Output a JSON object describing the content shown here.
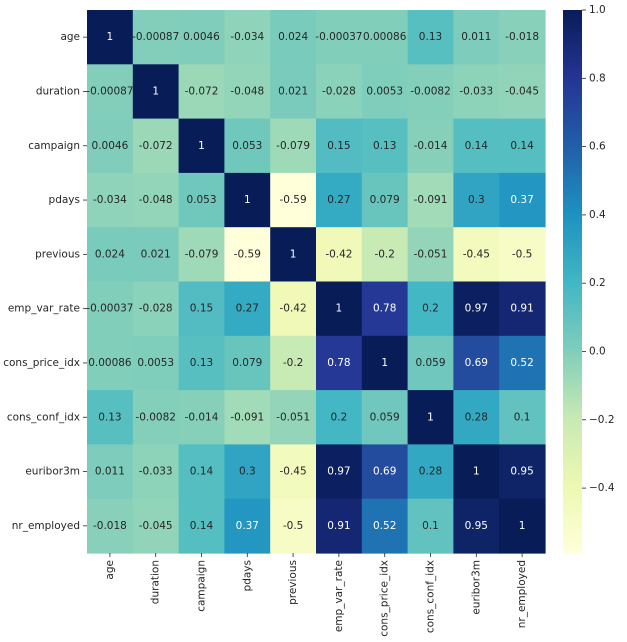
{
  "chart_data": {
    "type": "heatmap",
    "title": "",
    "xlabel": "",
    "ylabel": "",
    "variables": [
      "age",
      "duration",
      "campaign",
      "pdays",
      "previous",
      "emp_var_rate",
      "cons_price_idx",
      "cons_conf_idx",
      "euribor3m",
      "nr_employed"
    ],
    "matrix": [
      [
        1,
        -0.00087,
        0.0046,
        -0.034,
        0.024,
        -0.00037,
        0.00086,
        0.13,
        0.011,
        -0.018
      ],
      [
        -0.00087,
        1,
        -0.072,
        -0.048,
        0.021,
        -0.028,
        0.0053,
        -0.0082,
        -0.033,
        -0.045
      ],
      [
        0.0046,
        -0.072,
        1,
        0.053,
        -0.079,
        0.15,
        0.13,
        -0.014,
        0.14,
        0.14
      ],
      [
        -0.034,
        -0.048,
        0.053,
        1,
        -0.59,
        0.27,
        0.079,
        -0.091,
        0.3,
        0.37
      ],
      [
        0.024,
        0.021,
        -0.079,
        -0.59,
        1,
        -0.42,
        -0.2,
        -0.051,
        -0.45,
        -0.5
      ],
      [
        -0.00037,
        -0.028,
        0.15,
        0.27,
        -0.42,
        1,
        0.78,
        0.2,
        0.97,
        0.91
      ],
      [
        0.00086,
        0.0053,
        0.13,
        0.079,
        -0.2,
        0.78,
        1,
        0.059,
        0.69,
        0.52
      ],
      [
        0.13,
        -0.0082,
        -0.014,
        -0.091,
        -0.051,
        0.2,
        0.059,
        1,
        0.28,
        0.1
      ],
      [
        0.011,
        -0.033,
        0.14,
        0.3,
        -0.45,
        0.97,
        0.69,
        0.28,
        1,
        0.95
      ],
      [
        -0.018,
        -0.045,
        0.14,
        0.37,
        -0.5,
        0.91,
        0.52,
        0.1,
        0.95,
        1
      ]
    ],
    "cell_labels": [
      [
        "1",
        "-0.00087",
        "0.0046",
        "-0.034",
        "0.024",
        "-0.00037",
        "0.00086",
        "0.13",
        "0.011",
        "-0.018"
      ],
      [
        "-0.00087",
        "1",
        "-0.072",
        "-0.048",
        "0.021",
        "-0.028",
        "0.0053",
        "-0.0082",
        "-0.033",
        "-0.045"
      ],
      [
        "0.0046",
        "-0.072",
        "1",
        "0.053",
        "-0.079",
        "0.15",
        "0.13",
        "-0.014",
        "0.14",
        "0.14"
      ],
      [
        "-0.034",
        "-0.048",
        "0.053",
        "1",
        "-0.59",
        "0.27",
        "0.079",
        "-0.091",
        "0.3",
        "0.37"
      ],
      [
        "0.024",
        "0.021",
        "-0.079",
        "-0.59",
        "1",
        "-0.42",
        "-0.2",
        "-0.051",
        "-0.45",
        "-0.5"
      ],
      [
        "-0.00037",
        "-0.028",
        "0.15",
        "0.27",
        "-0.42",
        "1",
        "0.78",
        "0.2",
        "0.97",
        "0.91"
      ],
      [
        "0.00086",
        "0.0053",
        "0.13",
        "0.079",
        "-0.2",
        "0.78",
        "1",
        "0.059",
        "0.69",
        "0.52"
      ],
      [
        "0.13",
        "-0.0082",
        "-0.014",
        "-0.091",
        "-0.051",
        "0.2",
        "0.059",
        "1",
        "0.28",
        "0.1"
      ],
      [
        "0.011",
        "-0.033",
        "0.14",
        "0.3",
        "-0.45",
        "0.97",
        "0.69",
        "0.28",
        "1",
        "0.95"
      ],
      [
        "-0.018",
        "-0.045",
        "0.14",
        "0.37",
        "-0.5",
        "0.91",
        "0.52",
        "0.1",
        "0.95",
        "1"
      ]
    ],
    "colormap": "YlGnBu",
    "color_range": [
      -0.59,
      1.0
    ],
    "colorbar": {
      "ticks": [
        1.0,
        0.8,
        0.6,
        0.4,
        0.2,
        0.0,
        -0.2,
        -0.4
      ],
      "tick_labels": [
        "1.0",
        "0.8",
        "0.6",
        "0.4",
        "0.2",
        "0.0",
        "−0.2",
        "−0.4"
      ]
    },
    "colors": {
      "ylgnbu_stops": [
        "#ffffd9",
        "#edf8b1",
        "#c7e9b4",
        "#7fcdbb",
        "#41b6c4",
        "#1d91c0",
        "#225ea8",
        "#253494",
        "#081d58"
      ],
      "annotation_dark_text": "#262626",
      "annotation_light_text": "#ffffff"
    }
  }
}
